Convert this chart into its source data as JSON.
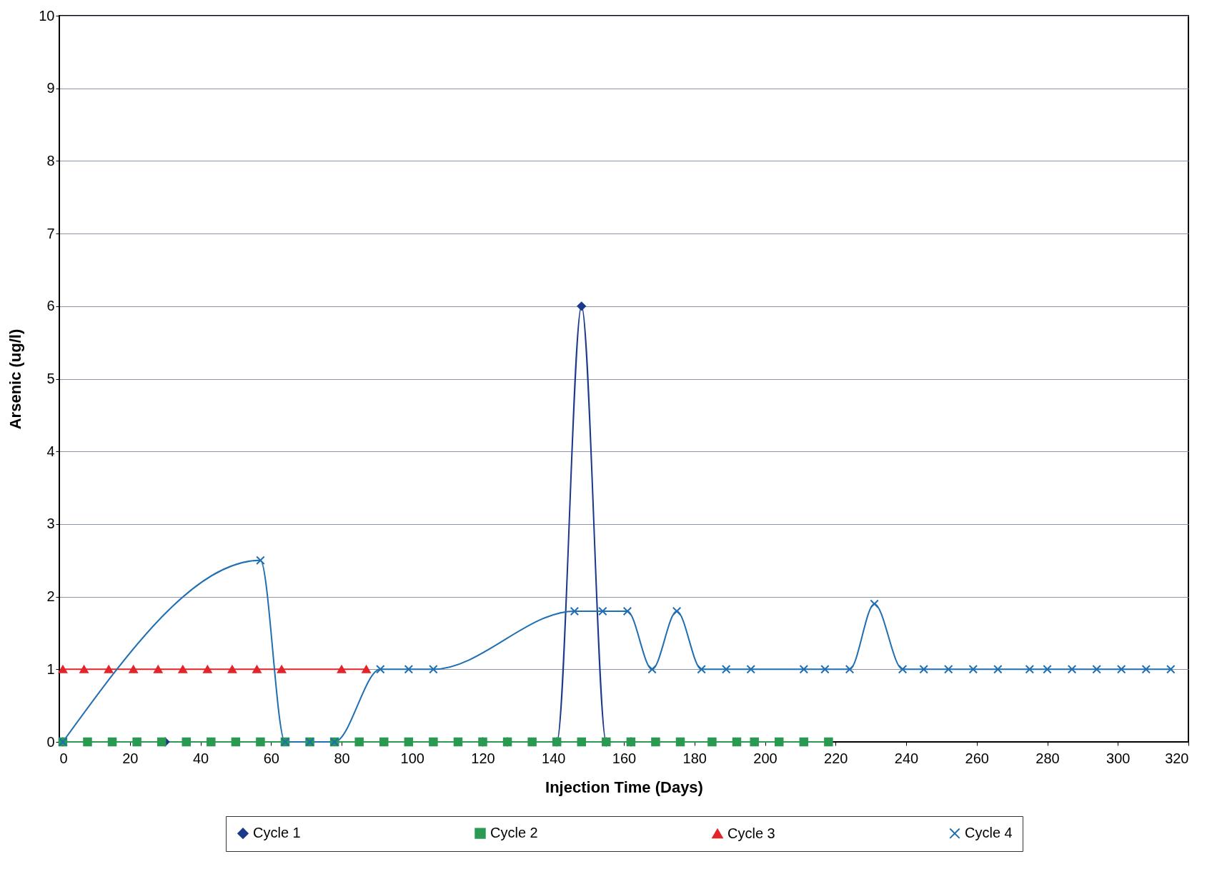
{
  "chart_data": {
    "type": "line",
    "xlabel": "Injection Time (Days)",
    "ylabel": "Arsenic (ug/l)",
    "xlim": [
      0,
      320
    ],
    "xticks": [
      0,
      20,
      40,
      60,
      80,
      100,
      120,
      140,
      160,
      180,
      200,
      220,
      240,
      260,
      280,
      300,
      320
    ],
    "ylim": [
      0,
      10
    ],
    "yticks": [
      0,
      1,
      2,
      3,
      4,
      5,
      6,
      7,
      8,
      9,
      10
    ],
    "grid": "y",
    "legend": "bottom",
    "series": [
      {
        "name": "Cycle 1",
        "color": "#1b3a8c",
        "marker": "diamond",
        "x": [
          1,
          30,
          120,
          127,
          141,
          148,
          155,
          162
        ],
        "values": [
          0,
          0,
          0,
          0,
          0,
          6,
          0,
          0
        ]
      },
      {
        "name": "Cycle 2",
        "color": "#2a9a52",
        "marker": "square",
        "x": [
          1,
          8,
          15,
          22,
          29,
          36,
          43,
          50,
          57,
          64,
          71,
          78,
          85,
          92,
          99,
          106,
          113,
          120,
          127,
          134,
          141,
          148,
          155,
          162,
          169,
          176,
          185,
          192,
          197,
          204,
          211,
          218
        ],
        "values": [
          0,
          0,
          0,
          0,
          0,
          0,
          0,
          0,
          0,
          0,
          0,
          0,
          0,
          0,
          0,
          0,
          0,
          0,
          0,
          0,
          0,
          0,
          0,
          0,
          0,
          0,
          0,
          0,
          0,
          0,
          0,
          0
        ]
      },
      {
        "name": "Cycle 3",
        "color": "#e3242b",
        "marker": "triangle",
        "x": [
          1,
          7,
          14,
          21,
          28,
          35,
          42,
          49,
          56,
          63,
          80,
          87
        ],
        "values": [
          1,
          1,
          1,
          1,
          1,
          1,
          1,
          1,
          1,
          1,
          1,
          1
        ]
      },
      {
        "name": "Cycle 4",
        "color": "#1f6fb2",
        "marker": "cross",
        "x": [
          1,
          57,
          64,
          71,
          78,
          91,
          99,
          106,
          146,
          154,
          161,
          168,
          175,
          182,
          189,
          196,
          211,
          217,
          224,
          231,
          239,
          245,
          252,
          259,
          266,
          275,
          280,
          287,
          294,
          301,
          308,
          315
        ],
        "values": [
          0,
          2.5,
          0,
          0,
          0,
          1,
          1,
          1,
          1.8,
          1.8,
          1.8,
          1,
          1.8,
          1,
          1,
          1,
          1,
          1,
          1,
          1.9,
          1,
          1,
          1,
          1,
          1,
          1,
          1,
          1,
          1,
          1,
          1,
          1
        ]
      }
    ]
  }
}
